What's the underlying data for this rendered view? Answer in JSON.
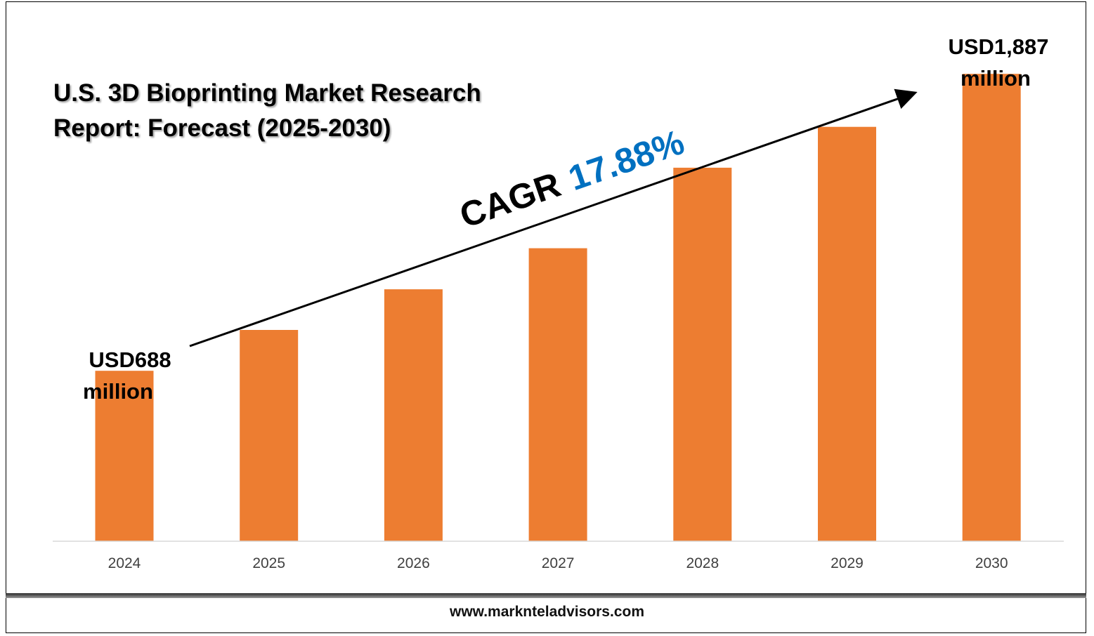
{
  "chart_data": {
    "type": "bar",
    "title": "U.S. 3D Bioprinting Market Research Report: Forecast (2025-2030)",
    "title_lines": [
      "U.S. 3D Bioprinting Market Research",
      "Report: Forecast (2025-2030)"
    ],
    "categories": [
      "2024",
      "2025",
      "2026",
      "2027",
      "2028",
      "2029",
      "2030"
    ],
    "values": [
      688,
      853,
      1017,
      1183,
      1508,
      1673,
      1887
    ],
    "ylim": [
      0,
      2185
    ],
    "grid": false,
    "legend": "none",
    "annotations": {
      "start_label_lines": [
        "USD688",
        "million"
      ],
      "end_label_lines": [
        "USD1,887",
        "million"
      ],
      "cagr_label": "CAGR",
      "cagr_value": "17.88%"
    },
    "colors": {
      "bar": "#ed7d31",
      "cagr_value": "#0070c0",
      "axis": "#d9d9d9"
    }
  },
  "footer": {
    "website": "www.marknteladvisors.com"
  }
}
